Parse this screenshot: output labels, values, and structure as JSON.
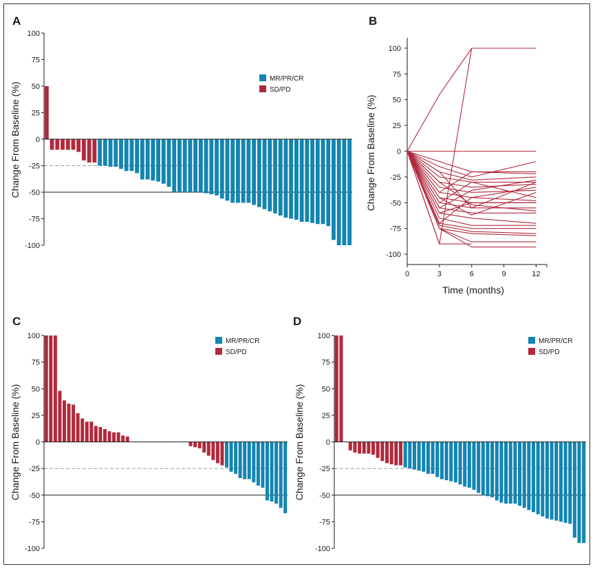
{
  "colors": {
    "response": "#1385b0",
    "stable": "#b02a3c",
    "line": "#b02a3c",
    "axis": "#1a1a1a",
    "dashed": "#9a9a9a"
  },
  "legend": {
    "response_label": "MR/PR/CR",
    "stable_label": "SD/PD"
  },
  "chart_data": [
    {
      "panel": "A",
      "type": "bar",
      "title": "",
      "xlabel": "",
      "ylabel": "Change From Baseline (%)",
      "ylim": [
        -100,
        100
      ],
      "yticks": [
        100,
        75,
        50,
        25,
        0,
        -25,
        -50,
        -75,
        -100
      ],
      "reference_lines": [
        {
          "y": -25,
          "style": "dashed"
        },
        {
          "y": -50,
          "style": "solid"
        }
      ],
      "values": [
        50,
        -10,
        -10,
        -10,
        -10,
        -10,
        -12,
        -20,
        -22,
        -22,
        -25,
        -25,
        -26,
        -26,
        -28,
        -30,
        -30,
        -32,
        -38,
        -38,
        -39,
        -40,
        -42,
        -45,
        -50,
        -50,
        -50,
        -50,
        -50,
        -50,
        -51,
        -52,
        -53,
        -56,
        -58,
        -60,
        -60,
        -60,
        -60,
        -62,
        -64,
        -66,
        -68,
        -70,
        -72,
        -74,
        -75,
        -76,
        -78,
        -78,
        -79,
        -80,
        -80,
        -82,
        -95,
        -100,
        -100,
        -100
      ],
      "categories": [
        "SD/PD",
        "SD/PD",
        "SD/PD",
        "SD/PD",
        "SD/PD",
        "SD/PD",
        "SD/PD",
        "SD/PD",
        "SD/PD",
        "SD/PD",
        "MR/PR/CR",
        "MR/PR/CR",
        "MR/PR/CR",
        "MR/PR/CR",
        "MR/PR/CR",
        "MR/PR/CR",
        "MR/PR/CR",
        "MR/PR/CR",
        "MR/PR/CR",
        "MR/PR/CR",
        "MR/PR/CR",
        "MR/PR/CR",
        "MR/PR/CR",
        "MR/PR/CR",
        "MR/PR/CR",
        "MR/PR/CR",
        "MR/PR/CR",
        "MR/PR/CR",
        "MR/PR/CR",
        "MR/PR/CR",
        "MR/PR/CR",
        "MR/PR/CR",
        "MR/PR/CR",
        "MR/PR/CR",
        "MR/PR/CR",
        "MR/PR/CR",
        "MR/PR/CR",
        "MR/PR/CR",
        "MR/PR/CR",
        "MR/PR/CR",
        "MR/PR/CR",
        "MR/PR/CR",
        "MR/PR/CR",
        "MR/PR/CR",
        "MR/PR/CR",
        "MR/PR/CR",
        "MR/PR/CR",
        "MR/PR/CR",
        "MR/PR/CR",
        "MR/PR/CR",
        "MR/PR/CR",
        "MR/PR/CR",
        "MR/PR/CR",
        "MR/PR/CR",
        "MR/PR/CR",
        "MR/PR/CR",
        "MR/PR/CR",
        "MR/PR/CR"
      ],
      "legend": [
        "MR/PR/CR",
        "SD/PD"
      ]
    },
    {
      "panel": "B",
      "type": "line",
      "title": "",
      "xlabel": "Time (months)",
      "ylabel": "Change From Baseline (%)",
      "xlim": [
        0,
        13
      ],
      "xticks": [
        0,
        3,
        6,
        9,
        12
      ],
      "ylim": [
        -110,
        110
      ],
      "yticks": [
        100,
        75,
        50,
        25,
        0,
        -25,
        -50,
        -75,
        -100
      ],
      "series": [
        {
          "x": [
            0,
            3,
            6,
            12
          ],
          "y": [
            0,
            55,
            100,
            100
          ]
        },
        {
          "x": [
            0,
            3,
            6
          ],
          "y": [
            0,
            -90,
            100
          ]
        },
        {
          "x": [
            0,
            3,
            6,
            12
          ],
          "y": [
            0,
            0,
            0,
            0
          ]
        },
        {
          "x": [
            0,
            3,
            6,
            12
          ],
          "y": [
            0,
            -10,
            -20,
            -20
          ]
        },
        {
          "x": [
            0,
            3,
            6,
            12
          ],
          "y": [
            0,
            -15,
            -25,
            -10
          ]
        },
        {
          "x": [
            0,
            3,
            6,
            12
          ],
          "y": [
            0,
            -20,
            -28,
            -25
          ]
        },
        {
          "x": [
            0,
            3,
            6,
            12
          ],
          "y": [
            0,
            -25,
            -30,
            -30
          ]
        },
        {
          "x": [
            0,
            3,
            6,
            12
          ],
          "y": [
            0,
            -30,
            -35,
            -32
          ]
        },
        {
          "x": [
            0,
            3,
            6,
            12
          ],
          "y": [
            0,
            -35,
            -40,
            -38
          ]
        },
        {
          "x": [
            0,
            3,
            6,
            12
          ],
          "y": [
            0,
            -40,
            -45,
            -48
          ]
        },
        {
          "x": [
            0,
            3,
            6,
            12
          ],
          "y": [
            0,
            -45,
            -50,
            -50
          ]
        },
        {
          "x": [
            0,
            3,
            6,
            12
          ],
          "y": [
            0,
            -50,
            -55,
            -55
          ]
        },
        {
          "x": [
            0,
            3,
            6,
            12
          ],
          "y": [
            0,
            -55,
            -60,
            -60
          ]
        },
        {
          "x": [
            0,
            3,
            6,
            12
          ],
          "y": [
            0,
            -60,
            -65,
            -70
          ]
        },
        {
          "x": [
            0,
            3,
            6,
            12
          ],
          "y": [
            0,
            -65,
            -72,
            -72
          ]
        },
        {
          "x": [
            0,
            3,
            6,
            12
          ],
          "y": [
            0,
            -70,
            -75,
            -75
          ]
        },
        {
          "x": [
            0,
            3,
            6,
            12
          ],
          "y": [
            0,
            -72,
            -78,
            -80
          ]
        },
        {
          "x": [
            0,
            3,
            6,
            12
          ],
          "y": [
            0,
            -75,
            -80,
            -82
          ]
        },
        {
          "x": [
            0,
            3,
            6,
            12
          ],
          "y": [
            0,
            -75,
            -88,
            -88
          ]
        },
        {
          "x": [
            0,
            3,
            6,
            12
          ],
          "y": [
            0,
            -75,
            -93,
            -93
          ]
        },
        {
          "x": [
            0,
            3,
            6
          ],
          "y": [
            0,
            -90,
            -90
          ]
        },
        {
          "x": [
            0,
            3,
            6,
            12
          ],
          "y": [
            0,
            -40,
            -20,
            -22
          ]
        },
        {
          "x": [
            0,
            3,
            6,
            12
          ],
          "y": [
            0,
            -55,
            -38,
            -28
          ]
        },
        {
          "x": [
            0,
            3,
            6,
            12
          ],
          "y": [
            0,
            -70,
            -45,
            -35
          ]
        },
        {
          "x": [
            0,
            3,
            6,
            12
          ],
          "y": [
            0,
            -50,
            -30,
            -45
          ]
        },
        {
          "x": [
            0,
            3,
            6,
            12
          ],
          "y": [
            0,
            -30,
            -52,
            -58
          ]
        },
        {
          "x": [
            0,
            3,
            6,
            12
          ],
          "y": [
            0,
            -45,
            -62,
            -40
          ]
        },
        {
          "x": [
            0,
            3,
            6,
            12
          ],
          "y": [
            0,
            -60,
            -50,
            -50
          ]
        },
        {
          "x": [
            0,
            3,
            6,
            12
          ],
          "y": [
            0,
            -20,
            -55,
            -30
          ]
        }
      ]
    },
    {
      "panel": "C",
      "type": "bar",
      "title": "",
      "xlabel": "",
      "ylabel": "Change From Baseline (%)",
      "ylim": [
        -100,
        100
      ],
      "yticks": [
        100,
        75,
        50,
        25,
        0,
        -25,
        -50,
        -75,
        -100
      ],
      "reference_lines": [
        {
          "y": -25,
          "style": "dashed"
        },
        {
          "y": -50,
          "style": "solid"
        }
      ],
      "values": [
        100,
        100,
        100,
        48,
        39,
        36,
        35,
        27,
        22,
        19,
        19,
        15,
        14,
        12,
        10,
        9,
        9,
        6,
        5,
        0,
        0,
        0,
        0,
        0,
        0,
        0,
        0,
        0,
        0,
        0,
        0,
        0,
        -4,
        -5,
        -6,
        -10,
        -13,
        -17,
        -20,
        -22,
        -24,
        -28,
        -30,
        -34,
        -35,
        -35,
        -38,
        -41,
        -43,
        -55,
        -56,
        -58,
        -62,
        -67
      ],
      "categories": [
        "SD/PD",
        "SD/PD",
        "SD/PD",
        "SD/PD",
        "SD/PD",
        "SD/PD",
        "SD/PD",
        "SD/PD",
        "SD/PD",
        "SD/PD",
        "SD/PD",
        "SD/PD",
        "SD/PD",
        "SD/PD",
        "SD/PD",
        "SD/PD",
        "SD/PD",
        "SD/PD",
        "SD/PD",
        "SD/PD",
        "SD/PD",
        "SD/PD",
        "SD/PD",
        "SD/PD",
        "SD/PD",
        "SD/PD",
        "SD/PD",
        "SD/PD",
        "SD/PD",
        "SD/PD",
        "SD/PD",
        "SD/PD",
        "SD/PD",
        "SD/PD",
        "SD/PD",
        "SD/PD",
        "SD/PD",
        "SD/PD",
        "SD/PD",
        "SD/PD",
        "MR/PR/CR",
        "MR/PR/CR",
        "MR/PR/CR",
        "MR/PR/CR",
        "MR/PR/CR",
        "MR/PR/CR",
        "MR/PR/CR",
        "MR/PR/CR",
        "MR/PR/CR",
        "MR/PR/CR",
        "MR/PR/CR",
        "MR/PR/CR",
        "MR/PR/CR",
        "MR/PR/CR"
      ],
      "legend": [
        "MR/PR/CR",
        "SD/PD"
      ]
    },
    {
      "panel": "D",
      "type": "bar",
      "title": "",
      "xlabel": "",
      "ylabel": "Change From Baseline (%)",
      "ylim": [
        -100,
        100
      ],
      "yticks": [
        100,
        75,
        50,
        25,
        0,
        -25,
        -50,
        -75,
        -100
      ],
      "reference_lines": [
        {
          "y": -25,
          "style": "dashed"
        },
        {
          "y": -50,
          "style": "solid"
        }
      ],
      "values": [
        100,
        100,
        0,
        -8,
        -10,
        -11,
        -11,
        -11,
        -12,
        -15,
        -18,
        -20,
        -21,
        -22,
        -22,
        -24,
        -25,
        -26,
        -27,
        -28,
        -30,
        -30,
        -33,
        -35,
        -36,
        -37,
        -38,
        -40,
        -42,
        -43,
        -45,
        -48,
        -50,
        -51,
        -52,
        -55,
        -57,
        -58,
        -58,
        -58,
        -60,
        -62,
        -64,
        -66,
        -68,
        -70,
        -72,
        -73,
        -74,
        -75,
        -76,
        -77,
        -90,
        -95,
        -95
      ],
      "categories": [
        "SD/PD",
        "SD/PD",
        "SD/PD",
        "SD/PD",
        "SD/PD",
        "SD/PD",
        "SD/PD",
        "SD/PD",
        "SD/PD",
        "SD/PD",
        "SD/PD",
        "SD/PD",
        "SD/PD",
        "SD/PD",
        "SD/PD",
        "MR/PR/CR",
        "MR/PR/CR",
        "MR/PR/CR",
        "MR/PR/CR",
        "MR/PR/CR",
        "MR/PR/CR",
        "MR/PR/CR",
        "MR/PR/CR",
        "MR/PR/CR",
        "MR/PR/CR",
        "MR/PR/CR",
        "MR/PR/CR",
        "MR/PR/CR",
        "MR/PR/CR",
        "MR/PR/CR",
        "MR/PR/CR",
        "MR/PR/CR",
        "MR/PR/CR",
        "MR/PR/CR",
        "MR/PR/CR",
        "MR/PR/CR",
        "MR/PR/CR",
        "MR/PR/CR",
        "MR/PR/CR",
        "MR/PR/CR",
        "MR/PR/CR",
        "MR/PR/CR",
        "MR/PR/CR",
        "MR/PR/CR",
        "MR/PR/CR",
        "MR/PR/CR",
        "MR/PR/CR",
        "MR/PR/CR",
        "MR/PR/CR",
        "MR/PR/CR",
        "MR/PR/CR",
        "MR/PR/CR",
        "MR/PR/CR",
        "MR/PR/CR",
        "MR/PR/CR"
      ],
      "legend": [
        "MR/PR/CR",
        "SD/PD"
      ]
    }
  ]
}
